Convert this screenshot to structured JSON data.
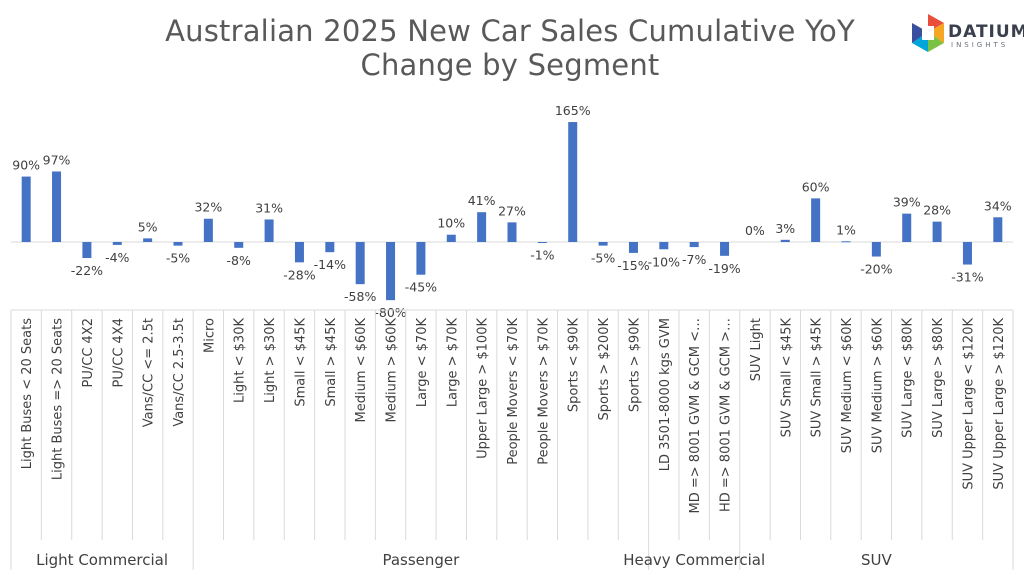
{
  "chart_data": {
    "type": "bar",
    "title": "Australian 2025 New Car Sales Cumulative YoY Change by Segment",
    "title_lines": [
      "Australian 2025 New Car Sales Cumulative YoY",
      "Change by Segment"
    ],
    "value_suffix": "%",
    "bar_color": "#4472C4",
    "ylim": [
      -90,
      170
    ],
    "grid": false,
    "legend": "none",
    "categories": [
      "Light Buses < 20 Seats",
      "Light Buses => 20 Seats",
      "PU/CC 4X2",
      "PU/CC 4X4",
      "Vans/CC <= 2.5t",
      "Vans/CC 2.5-3.5t",
      "Micro",
      "Light < $30K",
      "Light > $30K",
      "Small < $45K",
      "Small > $45K",
      "Medium < $60K",
      "Medium > $60K",
      "Large < $70K",
      "Large > $70K",
      "Upper Large > $100K",
      "People Movers < $70K",
      "People Movers > $70K",
      "Sports < $90K",
      "Sports > $200K",
      "Sports > $90K",
      "LD 3501-8000 kgs GVM",
      "MD => 8001 GVM & GCM <…",
      "HD => 8001 GVM & GCM >…",
      "SUV Light",
      "SUV Small < $45K",
      "SUV Small > $45K",
      "SUV Medium < $60K",
      "SUV Medium > $60K",
      "SUV Large < $80K",
      "SUV Large > $80K",
      "SUV Upper Large < $120K",
      "SUV Upper Large > $120K"
    ],
    "values": [
      90,
      97,
      -22,
      -4,
      5,
      -5,
      32,
      -8,
      31,
      -28,
      -14,
      -58,
      -80,
      -45,
      10,
      41,
      27,
      -1,
      165,
      -5,
      -15,
      -10,
      -7,
      -19,
      0,
      3,
      60,
      1,
      -20,
      39,
      28,
      -31,
      34
    ],
    "groups": [
      {
        "name": "Light Commercial",
        "count": 6
      },
      {
        "name": "Passenger",
        "count": 15
      },
      {
        "name": "Heavy Commercial",
        "count": 3
      },
      {
        "name": "SUV",
        "count": 9
      }
    ]
  },
  "logo": {
    "word": "DATIUM",
    "sub": "INSIGHTS",
    "colors": [
      "#e94e3c",
      "#f5a623",
      "#7cc242",
      "#00a5d9",
      "#3a4f9e"
    ]
  }
}
